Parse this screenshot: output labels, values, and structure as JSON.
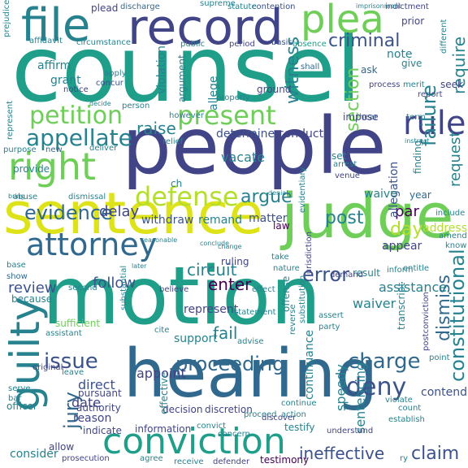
{
  "palette": {
    "dark_purple": "#440154",
    "indigo": "#3b528b",
    "navy": "#414487",
    "blue": "#31688e",
    "teal": "#26828e",
    "teal_green": "#1f9e89",
    "green": "#35b779",
    "light_green": "#6ece58",
    "lime": "#b5de2b",
    "yellow": "#dde318"
  },
  "words": [
    {
      "t": "counsel",
      "c": "teal_green"
    },
    {
      "t": "people",
      "c": "navy"
    },
    {
      "t": "motion",
      "c": "teal_green"
    },
    {
      "t": "hearing",
      "c": "blue"
    },
    {
      "t": "judge",
      "c": "light_green"
    },
    {
      "t": "sentence",
      "c": "yellow"
    },
    {
      "t": "record",
      "c": "navy"
    },
    {
      "t": "file",
      "c": "teal"
    },
    {
      "t": "plea",
      "c": "light_green"
    },
    {
      "t": "conviction",
      "c": "teal_green"
    },
    {
      "t": "attorney",
      "c": "blue"
    },
    {
      "t": "right",
      "c": "light_green"
    },
    {
      "t": "guilty",
      "c": "teal"
    },
    {
      "t": "petition",
      "c": "light_green"
    },
    {
      "t": "present",
      "c": "light_green"
    },
    {
      "t": "rule",
      "c": "navy"
    },
    {
      "t": "defense",
      "c": "lime"
    },
    {
      "t": "appellate",
      "c": "teal"
    },
    {
      "t": "evidence",
      "c": "blue"
    },
    {
      "t": "proceeding",
      "c": "blue"
    },
    {
      "t": "issue",
      "c": "indigo"
    },
    {
      "t": "deny",
      "c": "indigo"
    },
    {
      "t": "charge",
      "c": "blue"
    },
    {
      "t": "criminal",
      "c": "indigo"
    },
    {
      "t": "claim",
      "c": "indigo"
    },
    {
      "t": "error",
      "c": "indigo"
    },
    {
      "t": "failure",
      "c": "teal"
    },
    {
      "t": "section",
      "c": "light_green"
    },
    {
      "t": "constitutional",
      "c": "teal"
    },
    {
      "t": "dismiss",
      "c": "blue"
    },
    {
      "t": "witness",
      "c": "teal"
    },
    {
      "t": "argue",
      "c": "teal"
    },
    {
      "t": "post",
      "c": "teal"
    },
    {
      "t": "day",
      "c": "lime"
    },
    {
      "t": "circuit",
      "c": "teal"
    },
    {
      "t": "review",
      "c": "indigo"
    },
    {
      "t": "follow",
      "c": "indigo"
    },
    {
      "t": "enter",
      "c": "dark_purple"
    },
    {
      "t": "fail",
      "c": "teal"
    },
    {
      "t": "jury",
      "c": "blue"
    },
    {
      "t": "raise",
      "c": "teal"
    },
    {
      "t": "delay",
      "c": "navy"
    },
    {
      "t": "require",
      "c": "teal"
    },
    {
      "t": "request",
      "c": "teal"
    },
    {
      "t": "par",
      "c": "dark_purple"
    },
    {
      "t": "assistance",
      "c": "teal"
    },
    {
      "t": "waiver",
      "c": "teal"
    },
    {
      "t": "speedy",
      "c": "teal"
    },
    {
      "t": "sentencing",
      "c": "teal"
    },
    {
      "t": "ineffective",
      "c": "indigo"
    },
    {
      "t": "testimony",
      "c": "dark_purple"
    },
    {
      "t": "consider",
      "c": "teal"
    },
    {
      "t": "date",
      "c": "navy"
    },
    {
      "t": "appoint",
      "c": "navy"
    },
    {
      "t": "represent",
      "c": "navy"
    },
    {
      "t": "support",
      "c": "teal"
    },
    {
      "t": "continuance",
      "c": "teal"
    },
    {
      "t": "allegation",
      "c": "indigo"
    },
    {
      "t": "determine",
      "c": "indigo"
    },
    {
      "t": "conduct",
      "c": "navy"
    },
    {
      "t": "vacate",
      "c": "teal"
    },
    {
      "t": "withdraw",
      "c": "indigo"
    },
    {
      "t": "remand",
      "c": "teal"
    },
    {
      "t": "matter",
      "c": "indigo"
    },
    {
      "t": "law",
      "c": "dark_purple"
    },
    {
      "t": "waive",
      "c": "teal"
    },
    {
      "t": "appear",
      "c": "navy"
    },
    {
      "t": "violation",
      "c": "teal"
    },
    {
      "t": "allege",
      "c": "teal"
    },
    {
      "t": "argument",
      "c": "teal"
    },
    {
      "t": "affirm",
      "c": "teal"
    },
    {
      "t": "note",
      "c": "teal"
    },
    {
      "t": "grant",
      "c": "teal"
    },
    {
      "t": "plead",
      "c": "navy"
    },
    {
      "t": "discharge",
      "c": "blue"
    },
    {
      "t": "contention",
      "c": "indigo"
    },
    {
      "t": "indictment",
      "c": "navy"
    },
    {
      "t": "prior",
      "c": "navy"
    },
    {
      "t": "circumstance",
      "c": "teal"
    },
    {
      "t": "shall",
      "c": "blue"
    },
    {
      "t": "ask",
      "c": "blue"
    },
    {
      "t": "give",
      "c": "teal"
    },
    {
      "t": "hear",
      "c": "blue"
    },
    {
      "t": "process",
      "c": "navy"
    },
    {
      "t": "merit",
      "c": "teal"
    },
    {
      "t": "seek",
      "c": "navy"
    },
    {
      "t": "report",
      "c": "navy"
    },
    {
      "t": "impose",
      "c": "navy"
    },
    {
      "t": "set",
      "c": "teal"
    },
    {
      "t": "arrest",
      "c": "teal"
    },
    {
      "t": "venue",
      "c": "navy"
    },
    {
      "t": "finding",
      "c": "teal"
    },
    {
      "t": "result",
      "c": "teal"
    },
    {
      "t": "inform",
      "c": "teal"
    },
    {
      "t": "year",
      "c": "blue"
    },
    {
      "t": "statute",
      "c": "teal"
    },
    {
      "t": "supreme",
      "c": "teal"
    },
    {
      "t": "period",
      "c": "navy"
    },
    {
      "t": "public",
      "c": "teal"
    },
    {
      "t": "basis",
      "c": "indigo"
    },
    {
      "t": "absence",
      "c": "teal_green"
    },
    {
      "t": "ground",
      "c": "navy"
    },
    {
      "t": "properly",
      "c": "teal"
    },
    {
      "t": "apply",
      "c": "teal"
    },
    {
      "t": "concur",
      "c": "indigo"
    },
    {
      "t": "notice",
      "c": "navy"
    },
    {
      "t": "new",
      "c": "blue"
    },
    {
      "t": "provide",
      "c": "teal"
    },
    {
      "t": "deliver",
      "c": "teal"
    },
    {
      "t": "purpose",
      "c": "teal"
    },
    {
      "t": "abuse",
      "c": "teal"
    },
    {
      "t": "bring",
      "c": "teal"
    },
    {
      "t": "dismissal",
      "c": "teal"
    },
    {
      "t": "ch",
      "c": "teal"
    },
    {
      "t": "ruling",
      "c": "navy"
    },
    {
      "t": "take",
      "c": "teal"
    },
    {
      "t": "nature",
      "c": "teal"
    },
    {
      "t": "jurisdiction",
      "c": "navy"
    },
    {
      "t": "demand",
      "c": "navy"
    },
    {
      "t": "base",
      "c": "teal"
    },
    {
      "t": "show",
      "c": "blue"
    },
    {
      "t": "because",
      "c": "teal"
    },
    {
      "t": "second",
      "c": "teal"
    },
    {
      "t": "believe",
      "c": "navy"
    },
    {
      "t": "effect",
      "c": "teal"
    },
    {
      "t": "statement",
      "c": "teal"
    },
    {
      "t": "offense",
      "c": "teal"
    },
    {
      "t": "entitle",
      "c": "teal"
    },
    {
      "t": "change",
      "c": "teal"
    },
    {
      "t": "assert",
      "c": "teal"
    },
    {
      "t": "party",
      "c": "teal"
    },
    {
      "t": "transcript",
      "c": "teal"
    },
    {
      "t": "point",
      "c": "teal"
    },
    {
      "t": "postconviction",
      "c": "navy"
    },
    {
      "t": "contend",
      "c": "indigo"
    },
    {
      "t": "violate",
      "c": "teal"
    },
    {
      "t": "count",
      "c": "teal"
    },
    {
      "t": "establish",
      "c": "teal"
    },
    {
      "t": "sufficient",
      "c": "light_green"
    },
    {
      "t": "assistant",
      "c": "teal"
    },
    {
      "t": "cite",
      "c": "teal"
    },
    {
      "t": "advise",
      "c": "teal"
    },
    {
      "t": "reverse",
      "c": "teal"
    },
    {
      "t": "substitution",
      "c": "teal"
    },
    {
      "t": "direct",
      "c": "indigo"
    },
    {
      "t": "pursuant",
      "c": "navy"
    },
    {
      "t": "authority",
      "c": "navy"
    },
    {
      "t": "reason",
      "c": "navy"
    },
    {
      "t": "decision",
      "c": "navy"
    },
    {
      "t": "discretion",
      "c": "navy"
    },
    {
      "t": "proceed",
      "c": "teal"
    },
    {
      "t": "continue",
      "c": "teal"
    },
    {
      "t": "action",
      "c": "teal"
    },
    {
      "t": "testify",
      "c": "teal"
    },
    {
      "t": "understand",
      "c": "navy"
    },
    {
      "t": "discover",
      "c": "navy"
    },
    {
      "t": "effective",
      "c": "teal"
    },
    {
      "t": "information",
      "c": "navy"
    },
    {
      "t": "indicate",
      "c": "navy"
    },
    {
      "t": "allow",
      "c": "navy"
    },
    {
      "t": "leave",
      "c": "teal"
    },
    {
      "t": "serve",
      "c": "teal"
    },
    {
      "t": "original",
      "c": "navy"
    },
    {
      "t": "officer",
      "c": "teal"
    },
    {
      "t": "prosecution",
      "c": "navy"
    },
    {
      "t": "agree",
      "c": "teal"
    },
    {
      "t": "receive",
      "c": "teal"
    },
    {
      "t": "defender",
      "c": "navy"
    },
    {
      "t": "concern",
      "c": "teal"
    },
    {
      "t": "convict",
      "c": "teal"
    },
    {
      "t": "prejudice",
      "c": "teal"
    },
    {
      "t": "affidavit",
      "c": "teal"
    },
    {
      "t": "represent",
      "c": "teal"
    },
    {
      "t": "relief",
      "c": "teal"
    },
    {
      "t": "person",
      "c": "teal"
    },
    {
      "t": "however",
      "c": "teal"
    },
    {
      "t": "decide",
      "c": "teal"
    },
    {
      "t": "term",
      "c": "teal"
    },
    {
      "t": "include",
      "c": "teal"
    },
    {
      "t": "address",
      "c": "lime"
    },
    {
      "t": "amend",
      "c": "teal"
    },
    {
      "t": "know",
      "c": "teal"
    },
    {
      "t": "imprisonment",
      "c": "teal"
    },
    {
      "t": "different",
      "c": "teal"
    },
    {
      "t": "instruct",
      "c": "teal"
    },
    {
      "t": "evidentiary",
      "c": "teal"
    },
    {
      "t": "denial",
      "c": "teal"
    },
    {
      "t": "conclude",
      "c": "teal"
    },
    {
      "t": "reasonable",
      "c": "teal"
    },
    {
      "t": "later",
      "c": "teal"
    },
    {
      "t": "substantial",
      "c": "teal"
    },
    {
      "t": "bar",
      "c": "teal"
    },
    {
      "t": "ry",
      "c": "teal"
    }
  ]
}
